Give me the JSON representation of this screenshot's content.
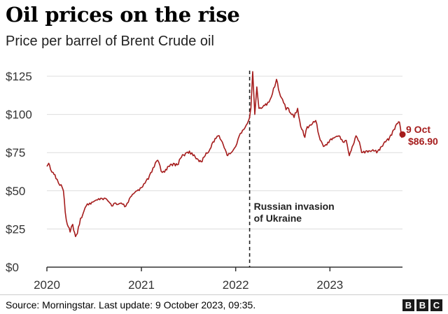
{
  "header": {
    "title": "Oil prices on the rise",
    "subtitle": "Price per barrel of Brent Crude oil"
  },
  "footer": {
    "source": "Source: Morningstar. Last update:  9 October 2023, 09:35.",
    "logo_letters": [
      "B",
      "B",
      "C"
    ]
  },
  "colors": {
    "line": "#a51c1c",
    "grid": "#dddddd",
    "axis": "#333333"
  },
  "chart_data": {
    "type": "line",
    "title": "Oil prices on the rise",
    "subtitle": "Price per barrel of Brent Crude oil",
    "xlabel": "",
    "ylabel": "",
    "xlim": [
      "2020-01-01",
      "2023-10-09"
    ],
    "ylim": [
      0,
      125
    ],
    "grid": "horizontal",
    "x_ticks": [
      "2020",
      "2021",
      "2022",
      "2023"
    ],
    "y_ticks": [
      "$0",
      "$25",
      "$50",
      "$75",
      "$100",
      "$125"
    ],
    "series": [
      {
        "x": [
          "2020-01-01",
          "2020-01-08",
          "2020-01-15",
          "2020-01-25",
          "2020-02-05",
          "2020-02-15",
          "2020-02-25",
          "2020-03-05",
          "2020-03-12",
          "2020-03-20",
          "2020-03-31",
          "2020-04-10",
          "2020-04-21",
          "2020-04-28",
          "2020-05-10",
          "2020-05-20",
          "2020-06-01",
          "2020-06-15",
          "2020-07-01",
          "2020-07-15",
          "2020-08-01",
          "2020-08-15",
          "2020-09-01",
          "2020-09-08",
          "2020-09-20",
          "2020-10-01",
          "2020-10-15",
          "2020-11-02",
          "2020-11-20",
          "2020-12-01",
          "2020-12-15",
          "2021-01-01",
          "2021-01-15",
          "2021-02-01",
          "2021-02-15",
          "2021-03-05",
          "2021-03-23",
          "2021-04-05",
          "2021-04-20",
          "2021-05-05",
          "2021-05-20",
          "2021-06-05",
          "2021-06-25",
          "2021-07-06",
          "2021-07-20",
          "2021-08-05",
          "2021-08-20",
          "2021-09-05",
          "2021-09-20",
          "2021-10-05",
          "2021-10-25",
          "2021-11-10",
          "2021-11-26",
          "2021-12-01",
          "2021-12-15",
          "2022-01-01",
          "2022-01-15",
          "2022-02-01",
          "2022-02-15",
          "2022-02-24",
          "2022-03-01",
          "2022-03-08",
          "2022-03-16",
          "2022-03-24",
          "2022-04-01",
          "2022-04-11",
          "2022-04-20",
          "2022-05-01",
          "2022-05-15",
          "2022-06-01",
          "2022-06-08",
          "2022-06-20",
          "2022-07-01",
          "2022-07-15",
          "2022-07-25",
          "2022-08-01",
          "2022-08-15",
          "2022-08-29",
          "2022-09-10",
          "2022-09-26",
          "2022-10-05",
          "2022-10-20",
          "2022-11-07",
          "2022-11-20",
          "2022-12-07",
          "2022-12-20",
          "2023-01-05",
          "2023-01-20",
          "2023-02-05",
          "2023-02-20",
          "2023-03-05",
          "2023-03-17",
          "2023-04-01",
          "2023-04-12",
          "2023-04-25",
          "2023-05-04",
          "2023-05-20",
          "2023-06-05",
          "2023-06-20",
          "2023-07-05",
          "2023-07-20",
          "2023-08-05",
          "2023-08-20",
          "2023-09-05",
          "2023-09-20",
          "2023-09-27",
          "2023-10-02",
          "2023-10-06",
          "2023-10-09"
        ],
        "y": [
          66,
          68,
          64,
          62,
          58,
          55,
          54,
          50,
          36,
          28,
          23,
          28,
          20,
          22,
          32,
          35,
          40,
          42,
          43,
          44,
          45,
          45,
          42,
          40,
          42,
          41,
          42,
          40,
          46,
          48,
          50,
          52,
          55,
          60,
          65,
          70,
          62,
          64,
          66,
          68,
          67,
          72,
          75,
          76,
          73,
          71,
          69,
          73,
          76,
          82,
          86,
          82,
          75,
          73,
          75,
          79,
          86,
          90,
          94,
          98,
          104,
          128,
          100,
          118,
          104,
          104,
          106,
          106,
          110,
          118,
          123,
          114,
          110,
          103,
          104,
          101,
          98,
          104,
          92,
          85,
          92,
          93,
          96,
          86,
          79,
          80,
          84,
          85,
          86,
          82,
          83,
          73,
          80,
          86,
          82,
          75,
          76,
          76,
          76,
          76,
          79,
          82,
          85,
          90,
          94,
          95,
          90,
          85,
          86.9
        ]
      }
    ],
    "annotations": [
      {
        "x": "2022-02-24",
        "lines": [
          "Russian invasion",
          "of Ukraine"
        ],
        "style": "dashed-vertical-line"
      },
      {
        "x": "2023-10-09",
        "y": 86.9,
        "lines": [
          "9 Oct",
          "$86.90"
        ],
        "style": "end-point-label"
      }
    ]
  }
}
